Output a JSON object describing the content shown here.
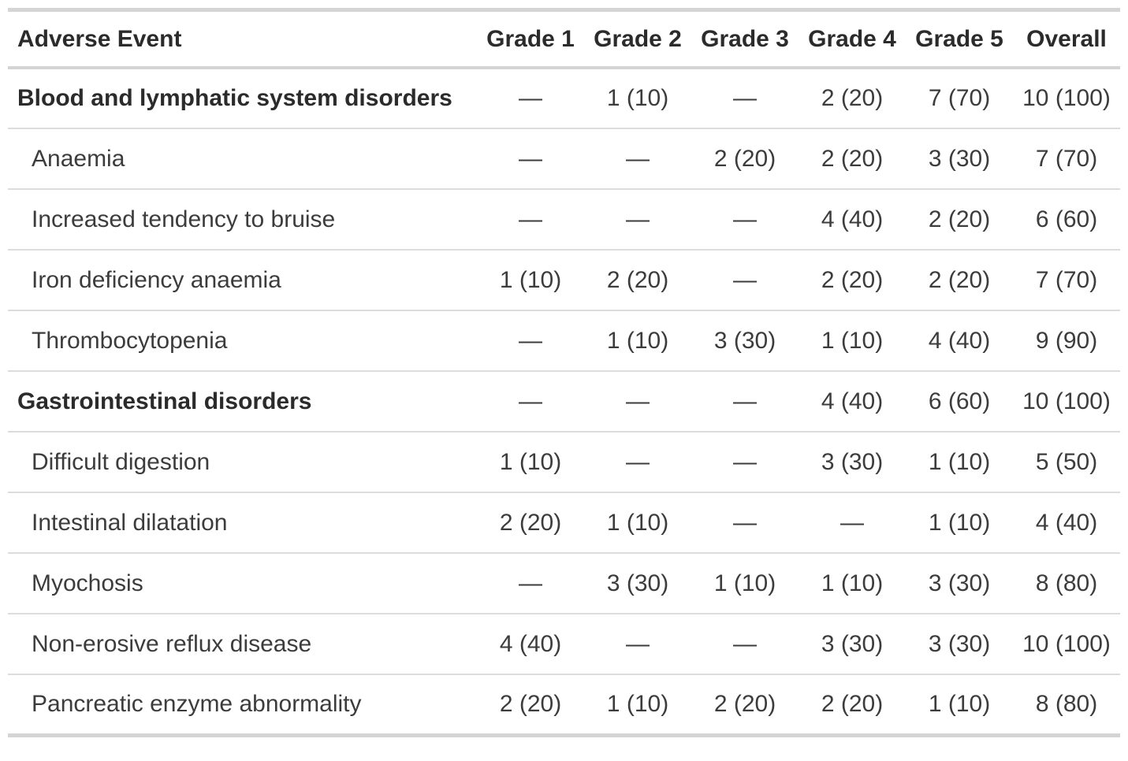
{
  "colors": {
    "thick_rule": "#d4d4d4",
    "thin_rule": "#dcdcdc",
    "header_text": "#2b2b2b",
    "body_text": "#3c3c3c",
    "background": "#ffffff"
  },
  "table": {
    "columns": [
      "Adverse Event",
      "Grade 1",
      "Grade 2",
      "Grade 3",
      "Grade 4",
      "Grade 5",
      "Overall"
    ],
    "empty_marker": "—",
    "rows": [
      {
        "label": "Blood and lymphatic system disorders",
        "category": true,
        "values": [
          "—",
          "1 (10)",
          "—",
          "2 (20)",
          "7 (70)",
          "10 (100)"
        ]
      },
      {
        "label": "Anaemia",
        "category": false,
        "values": [
          "—",
          "—",
          "2 (20)",
          "2 (20)",
          "3 (30)",
          "7 (70)"
        ]
      },
      {
        "label": "Increased tendency to bruise",
        "category": false,
        "values": [
          "—",
          "—",
          "—",
          "4 (40)",
          "2 (20)",
          "6 (60)"
        ]
      },
      {
        "label": "Iron deficiency anaemia",
        "category": false,
        "values": [
          "1 (10)",
          "2 (20)",
          "—",
          "2 (20)",
          "2 (20)",
          "7 (70)"
        ]
      },
      {
        "label": "Thrombocytopenia",
        "category": false,
        "values": [
          "—",
          "1 (10)",
          "3 (30)",
          "1 (10)",
          "4 (40)",
          "9 (90)"
        ]
      },
      {
        "label": "Gastrointestinal disorders",
        "category": true,
        "values": [
          "—",
          "—",
          "—",
          "4 (40)",
          "6 (60)",
          "10 (100)"
        ]
      },
      {
        "label": "Difficult digestion",
        "category": false,
        "values": [
          "1 (10)",
          "—",
          "—",
          "3 (30)",
          "1 (10)",
          "5 (50)"
        ]
      },
      {
        "label": "Intestinal dilatation",
        "category": false,
        "values": [
          "2 (20)",
          "1 (10)",
          "—",
          "—",
          "1 (10)",
          "4 (40)"
        ]
      },
      {
        "label": "Myochosis",
        "category": false,
        "values": [
          "—",
          "3 (30)",
          "1 (10)",
          "1 (10)",
          "3 (30)",
          "8 (80)"
        ]
      },
      {
        "label": "Non-erosive reflux disease",
        "category": false,
        "values": [
          "4 (40)",
          "—",
          "—",
          "3 (30)",
          "3 (30)",
          "10 (100)"
        ]
      },
      {
        "label": "Pancreatic enzyme abnormality",
        "category": false,
        "values": [
          "2 (20)",
          "1 (10)",
          "2 (20)",
          "2 (20)",
          "1 (10)",
          "8 (80)"
        ]
      }
    ]
  }
}
